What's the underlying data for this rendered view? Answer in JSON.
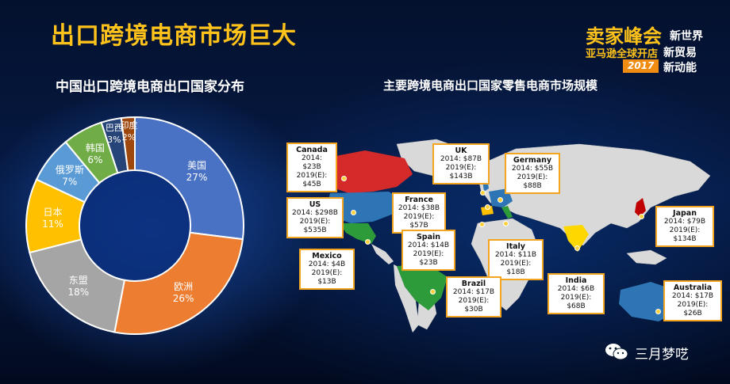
{
  "title": "出口跨境电商市场巨大",
  "brand": {
    "line1": "卖家峰会",
    "line1b": "新世界",
    "line2": "亚马逊全球开店",
    "line2b": "新贸易",
    "line3": "2017",
    "line3b": "新动能"
  },
  "left_subtitle": "中国出口跨境电商出口国家分布",
  "right_subtitle": "主要跨境电商出口国家零售电商市场规模",
  "watermark": "三月梦呓",
  "colors": {
    "title": "#ffc21a",
    "callout_border": "#f3a520",
    "map_land": "#d9d9d9"
  },
  "chart_data": [
    {
      "type": "pie",
      "variant": "donut",
      "title": "中国出口跨境电商出口国家分布",
      "slices": [
        {
          "label": "美国",
          "value": 27,
          "display": "27%",
          "color": "#4a72c4"
        },
        {
          "label": "欧洲",
          "value": 26,
          "display": "26%",
          "color": "#ed7d31"
        },
        {
          "label": "东盟",
          "value": 18,
          "display": "18%",
          "color": "#a5a5a5"
        },
        {
          "label": "日本",
          "value": 11,
          "display": "11%",
          "color": "#ffc000"
        },
        {
          "label": "俄罗斯",
          "value": 7,
          "display": "7%",
          "color": "#5b9bd5"
        },
        {
          "label": "韩国",
          "value": 6,
          "display": "6%",
          "color": "#70ad47"
        },
        {
          "label": "巴西",
          "value": 3,
          "display": "3%",
          "color": "#264478"
        },
        {
          "label": "印度",
          "value": 2,
          "display": "2%",
          "color": "#9e480e"
        }
      ]
    },
    {
      "type": "table",
      "title": "主要跨境电商出口国家零售电商市场规模",
      "markets": [
        {
          "country": "Canada",
          "y2014": "2014: $23B",
          "y2019": "2019(E): $45B",
          "color": "#d42a2a"
        },
        {
          "country": "UK",
          "y2014": "2014: $87B",
          "y2019": "2019(E): $143B",
          "color": "#2e75b6"
        },
        {
          "country": "Germany",
          "y2014": "2014: $55B",
          "y2019": "2019(E): $88B",
          "color": "#2e75b6"
        },
        {
          "country": "France",
          "y2014": "2014: $38B",
          "y2019": "2019(E): $57B",
          "color": "#2e75b6"
        },
        {
          "country": "US",
          "y2014": "2014: $298B",
          "y2019": "2019(E): $535B",
          "color": "#2e75b6"
        },
        {
          "country": "Japan",
          "y2014": "2014: $79B",
          "y2019": "2019(E): $134B",
          "color": "#c00000"
        },
        {
          "country": "Spain",
          "y2014": "2014: $14B",
          "y2019": "2019(E): $23B",
          "color": "#ffc000"
        },
        {
          "country": "Italy",
          "y2014": "2014: $11B",
          "y2019": "2019(E): $18B",
          "color": "#2e9b3a"
        },
        {
          "country": "Mexico",
          "y2014": "2014: $4B",
          "y2019": "2019(E): $13B",
          "color": "#2e9b3a"
        },
        {
          "country": "India",
          "y2014": "2014: $6B",
          "y2019": "2019(E): $68B",
          "color": "#ffd700"
        },
        {
          "country": "Brazil",
          "y2014": "2014: $17B",
          "y2019": "2019(E): $30B",
          "color": "#2e9b3a"
        },
        {
          "country": "Australia",
          "y2014": "2014: $17B",
          "y2019": "2019(E): $26B",
          "color": "#2e75b6"
        }
      ]
    }
  ]
}
